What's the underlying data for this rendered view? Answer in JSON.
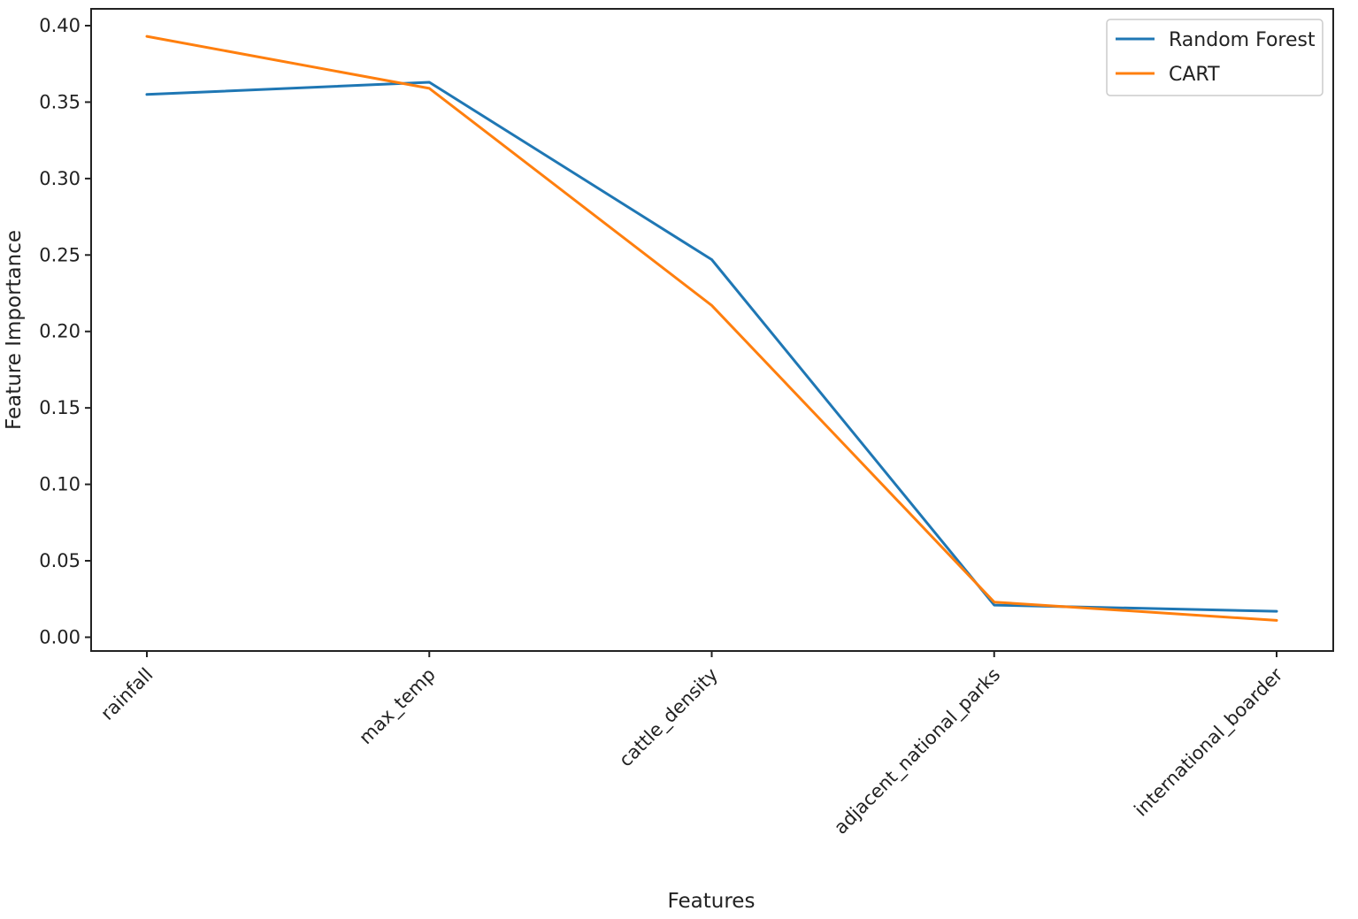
{
  "chart_data": {
    "type": "line",
    "title": "",
    "xlabel": "Features",
    "ylabel": "Feature Importance",
    "categories": [
      "rainfall",
      "max_temp",
      "cattle_density",
      "adjacent_national_parks",
      "international_boarder"
    ],
    "series": [
      {
        "name": "Random Forest",
        "color": "#1f77b4",
        "values": [
          0.355,
          0.363,
          0.247,
          0.021,
          0.017
        ]
      },
      {
        "name": "CART",
        "color": "#ff7f0e",
        "values": [
          0.393,
          0.359,
          0.217,
          0.023,
          0.011
        ]
      }
    ],
    "ylim": [
      -0.009,
      0.411
    ],
    "yticks": [
      0.0,
      0.05,
      0.1,
      0.15,
      0.2,
      0.25,
      0.3,
      0.35,
      0.4
    ],
    "ytick_labels": [
      "0.00",
      "0.05",
      "0.10",
      "0.15",
      "0.20",
      "0.25",
      "0.30",
      "0.35",
      "0.40"
    ],
    "xtick_rotation_deg": 45,
    "grid": false,
    "legend": "top-right"
  }
}
